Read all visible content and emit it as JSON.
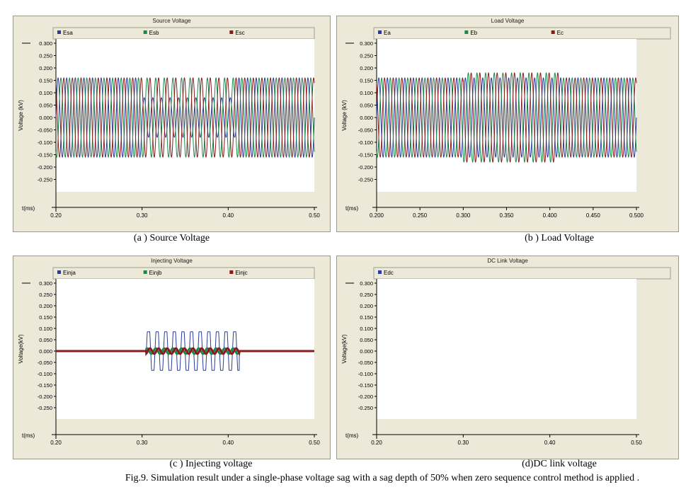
{
  "chart_data": [
    {
      "type": "line",
      "title": "Source Voltage",
      "caption": "(a ) Source Voltage",
      "ylabel": "Voltage (kV)",
      "xlabel": "t(ms)",
      "xlim": [
        0.2,
        0.5
      ],
      "ylim": [
        -0.3,
        0.3
      ],
      "xticks": [
        "0.20",
        "0.30",
        "0.40",
        "0.50"
      ],
      "yticks": [
        "0.300",
        "0.250",
        "0.200",
        "0.150",
        "0.100",
        "0.050",
        "0.000",
        "-0.050",
        "-0.100",
        "-0.150",
        "-0.200",
        "-0.250"
      ],
      "sag_window": [
        0.3,
        0.41
      ],
      "series": [
        {
          "name": "Esa",
          "color": "#2b3a9a",
          "amplitude": 0.16,
          "sag_amplitude": 0.08,
          "phase_deg": 0,
          "frequency_cycles_per_unit": 100
        },
        {
          "name": "Esb",
          "color": "#1a8a4a",
          "amplitude": 0.16,
          "sag_amplitude": 0.16,
          "phase_deg": -120,
          "frequency_cycles_per_unit": 100
        },
        {
          "name": "Esc",
          "color": "#8a1a1a",
          "amplitude": 0.16,
          "sag_amplitude": 0.16,
          "phase_deg": 120,
          "frequency_cycles_per_unit": 100
        }
      ]
    },
    {
      "type": "line",
      "title": "Load Voltage",
      "caption": "(b ) Load Voltage",
      "ylabel": "Voltage (kV)",
      "xlabel": "t(ms)",
      "xlim": [
        0.2,
        0.5
      ],
      "ylim": [
        -0.3,
        0.3
      ],
      "xticks": [
        "0.200",
        "0.250",
        "0.300",
        "0.350",
        "0.400",
        "0.450",
        "0.500"
      ],
      "yticks": [
        "0.300",
        "0.250",
        "0.200",
        "0.150",
        "0.100",
        "0.050",
        "0.000",
        "-0.050",
        "-0.100",
        "-0.150",
        "-0.200",
        "-0.250"
      ],
      "sag_window": [
        0.3,
        0.41
      ],
      "series": [
        {
          "name": "Ea",
          "color": "#2b3a9a",
          "amplitude": 0.16,
          "sag_amplitude": 0.16,
          "phase_deg": 0,
          "frequency_cycles_per_unit": 100
        },
        {
          "name": "Eb",
          "color": "#1a8a4a",
          "amplitude": 0.16,
          "sag_amplitude": 0.18,
          "phase_deg": -120,
          "frequency_cycles_per_unit": 100
        },
        {
          "name": "Ec",
          "color": "#8a1a1a",
          "amplitude": 0.16,
          "sag_amplitude": 0.18,
          "phase_deg": 120,
          "frequency_cycles_per_unit": 100
        }
      ]
    },
    {
      "type": "line",
      "title": "Injecting Voltage",
      "caption": "(c ) Injecting voltage",
      "ylabel": "Voltage(kV)",
      "xlabel": "t(ms)",
      "xlim": [
        0.2,
        0.5
      ],
      "ylim": [
        -0.3,
        0.3
      ],
      "xticks": [
        "0.20",
        "0.30",
        "0.40",
        "0.50"
      ],
      "yticks": [
        "0.300",
        "0.250",
        "0.200",
        "0.150",
        "0.100",
        "0.050",
        "0.000",
        "-0.050",
        "-0.100",
        "-0.150",
        "-0.200",
        "-0.250"
      ],
      "sag_window": [
        0.305,
        0.413
      ],
      "series": [
        {
          "name": "Einja",
          "color": "#2b3a9a",
          "amplitude": 0.0,
          "sag_amplitude": 0.085,
          "phase_deg": 180,
          "frequency_cycles_per_unit": 100
        },
        {
          "name": "Einjb",
          "color": "#1a8a4a",
          "amplitude": 0.0,
          "sag_amplitude": 0.012,
          "phase_deg": -120,
          "frequency_cycles_per_unit": 100
        },
        {
          "name": "Einjc",
          "color": "#8a1a1a",
          "amplitude": 0.0,
          "sag_amplitude": 0.012,
          "phase_deg": 120,
          "frequency_cycles_per_unit": 100
        }
      ]
    },
    {
      "type": "line",
      "title": "DC Link Voltage",
      "caption": "(d)DC link voltage",
      "ylabel": "Voltage(kV)",
      "xlabel": "t(ms)",
      "xlim": [
        0.2,
        0.5
      ],
      "ylim": [
        -0.3,
        0.3
      ],
      "xticks": [
        "0.20",
        "0.30",
        "0.40",
        "0.50"
      ],
      "yticks": [
        "0.300",
        "0.250",
        "0.200",
        "0.150",
        "0.100",
        "0.050",
        "0.000",
        "-0.050",
        "-0.100",
        "-0.150",
        "-0.200",
        "-0.250"
      ],
      "series": [
        {
          "name": "Edc",
          "color": "#2b3a9a"
        }
      ]
    }
  ],
  "figure_caption": "Fig.9. Simulation result under a single-phase voltage sag with a sag depth of 50% when zero sequence control method is applied ."
}
